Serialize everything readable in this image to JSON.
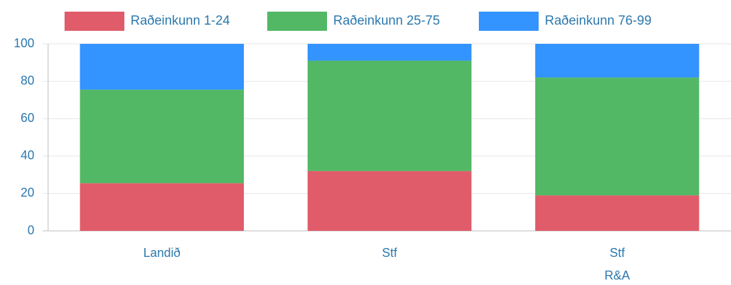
{
  "chart_data": {
    "type": "stacked_bar",
    "categories": [
      "Landið",
      "Stf",
      [
        "Stf",
        "R&A"
      ]
    ],
    "series": [
      {
        "name": "Raðeinkunn 1-24",
        "color": "#e05c6a",
        "values": [
          25.5,
          32,
          19
        ]
      },
      {
        "name": "Raðeinkunn 25-75",
        "color": "#52b865",
        "values": [
          50,
          59,
          63
        ]
      },
      {
        "name": "Raðeinkunn 76-99",
        "color": "#3393ff",
        "values": [
          24.5,
          9,
          18
        ]
      }
    ],
    "ylim": [
      0,
      100
    ],
    "yticks": [
      0,
      20,
      40,
      60,
      80,
      100
    ],
    "grid": true,
    "legend": "top"
  }
}
